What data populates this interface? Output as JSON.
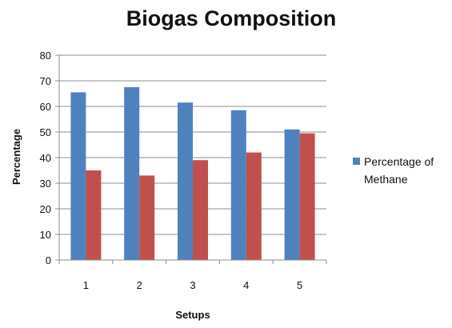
{
  "chart_data": {
    "type": "bar",
    "title": "Biogas Composition",
    "xlabel": "Setups",
    "ylabel": "Percentage",
    "categories": [
      "1",
      "2",
      "3",
      "4",
      "5"
    ],
    "series": [
      {
        "name": "Percentage of Methane",
        "values": [
          65.5,
          67.5,
          61.5,
          58.5,
          51
        ],
        "color": "#4F81BD"
      },
      {
        "values": [
          35,
          33,
          39,
          42,
          49.5
        ],
        "color": "#C0504D"
      }
    ],
    "ylim": [
      0,
      80
    ],
    "yticks": [
      0,
      10,
      20,
      30,
      40,
      50,
      60,
      70,
      80
    ],
    "grid": true,
    "legend_position": "right"
  }
}
